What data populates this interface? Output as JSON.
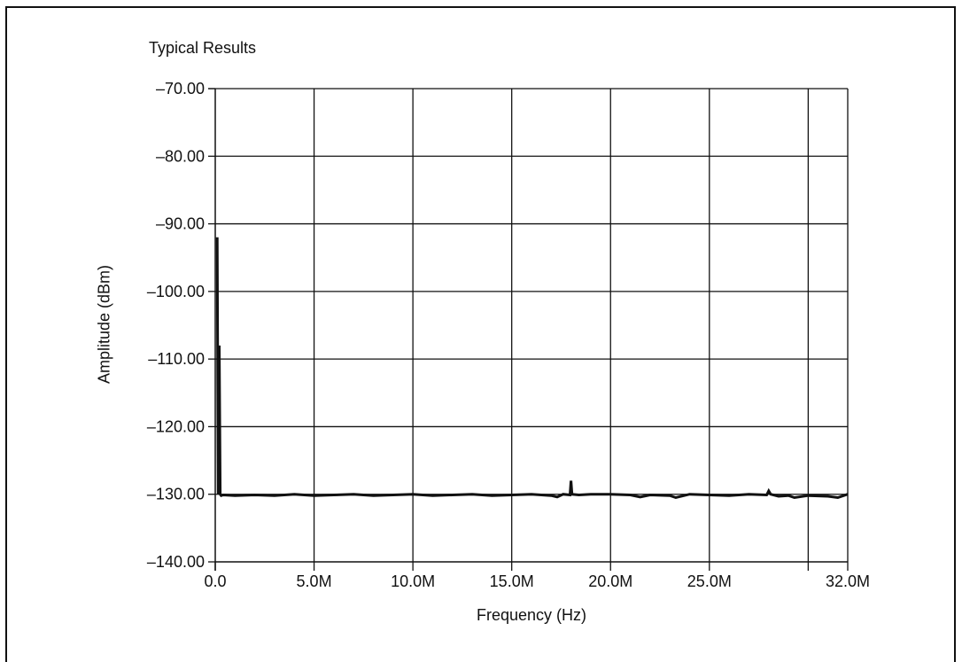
{
  "chart_data": {
    "type": "line",
    "title": "Typical Results",
    "xlabel": "Frequency (Hz)",
    "ylabel": "Amplitude (dBm)",
    "xlim": [
      0,
      32000000
    ],
    "ylim": [
      -140,
      -70
    ],
    "grid": true,
    "x_ticks": [
      {
        "value": 0,
        "label": "0.0"
      },
      {
        "value": 5000000,
        "label": "5.0M"
      },
      {
        "value": 10000000,
        "label": "10.0M"
      },
      {
        "value": 15000000,
        "label": "15.0M"
      },
      {
        "value": 20000000,
        "label": "20.0M"
      },
      {
        "value": 25000000,
        "label": "25.0M"
      },
      {
        "value": 32000000,
        "label": "32.0M"
      }
    ],
    "y_ticks": [
      {
        "value": -70,
        "label": "–70.00"
      },
      {
        "value": -80,
        "label": "–80.00"
      },
      {
        "value": -90,
        "label": "–90.00"
      },
      {
        "value": -100,
        "label": "–100.00"
      },
      {
        "value": -110,
        "label": "–110.00"
      },
      {
        "value": -120,
        "label": "–120.00"
      },
      {
        "value": -130,
        "label": "–130.00"
      },
      {
        "value": -140,
        "label": "–140.00"
      }
    ],
    "series": [
      {
        "color": "#111111",
        "x": [
          100000,
          150000,
          200000,
          250000,
          300000,
          400000,
          1000000,
          2000000,
          3000000,
          4000000,
          5000000,
          6000000,
          7000000,
          8000000,
          9000000,
          10000000,
          11000000,
          12000000,
          13000000,
          14000000,
          15000000,
          16000000,
          17000000,
          17300000,
          17600000,
          17950000,
          18000000,
          18050000,
          18400000,
          19000000,
          20000000,
          21000000,
          21500000,
          22000000,
          23000000,
          23300000,
          24000000,
          25000000,
          26000000,
          27000000,
          27900000,
          28000000,
          28100000,
          28500000,
          29000000,
          29300000,
          30000000,
          31000000,
          31500000,
          32000000
        ],
        "y": [
          -92,
          -130,
          -108,
          -130,
          -130.2,
          -130.1,
          -130.2,
          -130.1,
          -130.2,
          -130.0,
          -130.2,
          -130.1,
          -130.0,
          -130.2,
          -130.1,
          -130.0,
          -130.2,
          -130.1,
          -130.0,
          -130.2,
          -130.1,
          -130.0,
          -130.2,
          -130.4,
          -130.0,
          -130.1,
          -128.0,
          -130.0,
          -130.1,
          -130.0,
          -130.0,
          -130.1,
          -130.4,
          -130.1,
          -130.2,
          -130.5,
          -130.0,
          -130.1,
          -130.2,
          -130.0,
          -130.1,
          -129.5,
          -130.0,
          -130.3,
          -130.2,
          -130.5,
          -130.2,
          -130.3,
          -130.5,
          -130.0
        ]
      }
    ]
  }
}
